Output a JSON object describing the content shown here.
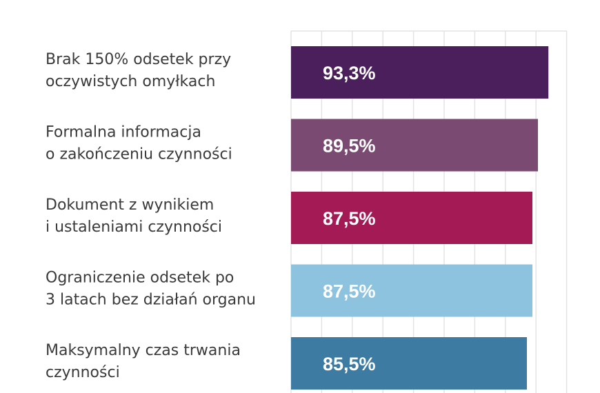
{
  "chart_data": {
    "type": "bar",
    "orientation": "horizontal",
    "subtitle": "",
    "categories": [
      [
        "Brak 150% odsetek przy",
        "oczywistych omyłkach"
      ],
      [
        "Formalna informacja",
        "o zakończeniu czynności"
      ],
      [
        "Dokument z wynikiem",
        "i ustaleniami czynności"
      ],
      [
        "Ograniczenie odsetek po",
        "3 latach bez działań organu"
      ],
      [
        "Maksymalny czas trwania",
        "czynności"
      ]
    ],
    "values": [
      93.3,
      89.5,
      87.5,
      87.5,
      85.5
    ],
    "data_labels": [
      "93,3%",
      "89,5%",
      "87,5%",
      "87,5%",
      "85,5%"
    ],
    "colors": [
      "#4a1f5c",
      "#7b4a72",
      "#a31a55",
      "#8ec3df",
      "#3e7ba2"
    ],
    "grid": true,
    "xlim": [
      0,
      100
    ],
    "legend": "none"
  }
}
